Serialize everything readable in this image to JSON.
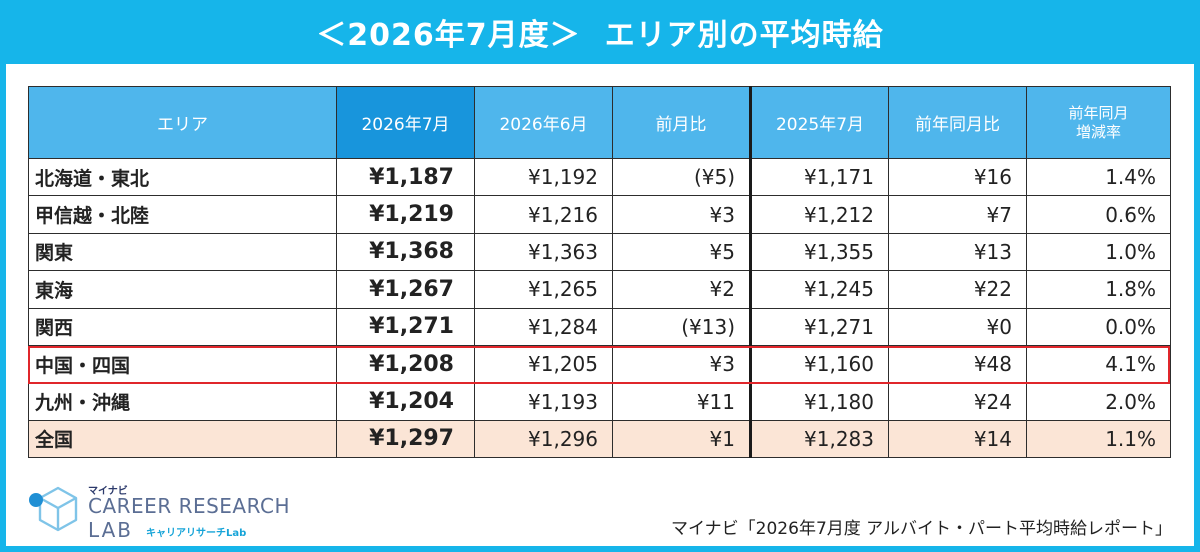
{
  "banner": {
    "prefix": "＜2026年7月度＞",
    "title": "エリア別の平均時給"
  },
  "chart_data": {
    "type": "table",
    "columns": [
      "エリア",
      "2026年7月",
      "2026年6月",
      "前月比",
      "2025年7月",
      "前年同月比",
      "前年同月\n増減率"
    ],
    "header_lines": {
      "col7_line1": "前年同月",
      "col7_line2": "増減率"
    },
    "rows": [
      {
        "area": "北海道・東北",
        "jul2026": "¥1,187",
        "jun2026": "¥1,192",
        "mom": "(¥5)",
        "mom_negative": true,
        "jul2025": "¥1,171",
        "yoy": "¥16",
        "yoy_rate": "1.4%"
      },
      {
        "area": "甲信越・北陸",
        "jul2026": "¥1,219",
        "jun2026": "¥1,216",
        "mom": "¥3",
        "mom_negative": false,
        "jul2025": "¥1,212",
        "yoy": "¥7",
        "yoy_rate": "0.6%"
      },
      {
        "area": "関東",
        "jul2026": "¥1,368",
        "jun2026": "¥1,363",
        "mom": "¥5",
        "mom_negative": false,
        "jul2025": "¥1,355",
        "yoy": "¥13",
        "yoy_rate": "1.0%"
      },
      {
        "area": "東海",
        "jul2026": "¥1,267",
        "jun2026": "¥1,265",
        "mom": "¥2",
        "mom_negative": false,
        "jul2025": "¥1,245",
        "yoy": "¥22",
        "yoy_rate": "1.8%"
      },
      {
        "area": "関西",
        "jul2026": "¥1,271",
        "jun2026": "¥1,284",
        "mom": "(¥13)",
        "mom_negative": true,
        "jul2025": "¥1,271",
        "yoy": "¥0",
        "yoy_rate": "0.0%"
      },
      {
        "area": "中国・四国",
        "jul2026": "¥1,208",
        "jun2026": "¥1,205",
        "mom": "¥3",
        "mom_negative": false,
        "jul2025": "¥1,160",
        "yoy": "¥48",
        "yoy_rate": "4.1%"
      },
      {
        "area": "九州・沖縄",
        "jul2026": "¥1,204",
        "jun2026": "¥1,193",
        "mom": "¥11",
        "mom_negative": false,
        "jul2025": "¥1,180",
        "yoy": "¥24",
        "yoy_rate": "2.0%"
      },
      {
        "area": "全国",
        "jul2026": "¥1,297",
        "jun2026": "¥1,296",
        "mom": "¥1",
        "mom_negative": false,
        "jul2025": "¥1,283",
        "yoy": "¥14",
        "yoy_rate": "1.1%"
      }
    ],
    "highlighted_row": "中国・四国",
    "total_row": "全国"
  },
  "colors": {
    "banner": "#16b5ea",
    "header": "#4fb6ec",
    "header_current": "#1895dc",
    "negative": "#e8261f",
    "highlight_border": "#e0262b",
    "total_row_bg": "#fbe5d6"
  },
  "logo": {
    "kana": "マイナビ",
    "line1": "CAREER RESEARCH",
    "line2": "LAB",
    "sub": "キャリアリサーチLab",
    "icon": "cube-logo-icon"
  },
  "source": "マイナビ「2026年7月度 アルバイト・パート平均時給レポート」"
}
